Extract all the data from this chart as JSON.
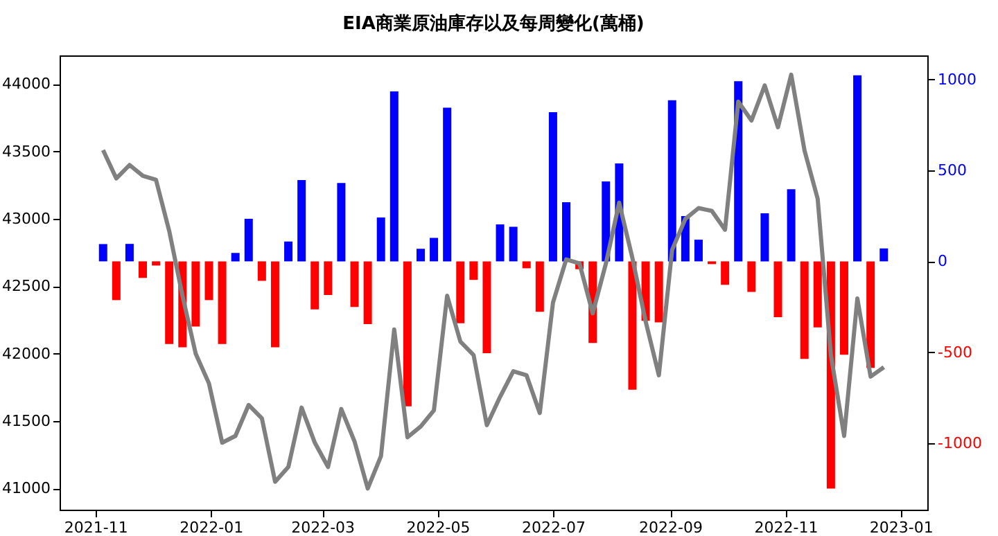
{
  "chart_data": {
    "type": "bar",
    "title": "EIA商業原油庫存以及每周變化(萬桶)",
    "x": [
      "2021-11-05",
      "2021-11-12",
      "2021-11-19",
      "2021-11-26",
      "2021-12-03",
      "2021-12-10",
      "2021-12-17",
      "2021-12-24",
      "2021-12-31",
      "2022-01-07",
      "2022-01-14",
      "2022-01-21",
      "2022-01-28",
      "2022-02-04",
      "2022-02-11",
      "2022-02-18",
      "2022-02-25",
      "2022-03-04",
      "2022-03-11",
      "2022-03-18",
      "2022-03-25",
      "2022-04-01",
      "2022-04-08",
      "2022-04-15",
      "2022-04-22",
      "2022-04-29",
      "2022-05-06",
      "2022-05-13",
      "2022-05-20",
      "2022-05-27",
      "2022-06-03",
      "2022-06-10",
      "2022-06-17",
      "2022-06-24",
      "2022-07-01",
      "2022-07-08",
      "2022-07-15",
      "2022-07-22",
      "2022-07-29",
      "2022-08-05",
      "2022-08-12",
      "2022-08-19",
      "2022-08-26",
      "2022-09-02",
      "2022-09-09",
      "2022-09-16",
      "2022-09-23",
      "2022-09-30",
      "2022-10-07",
      "2022-10-14",
      "2022-10-21",
      "2022-10-28",
      "2022-11-04",
      "2022-11-11",
      "2022-11-18",
      "2022-11-25",
      "2022-12-02",
      "2022-12-09",
      "2022-12-16",
      "2022-12-23"
    ],
    "series": [
      {
        "axis": "y2",
        "colors": [
          "#0000ff",
          "#ff0000",
          "#0000ff",
          "#ff0000",
          "#ff0000",
          "#ff0000",
          "#ff0000",
          "#ff0000",
          "#ff0000",
          "#ff0000",
          "#0000ff",
          "#0000ff",
          "#ff0000",
          "#ff0000",
          "#0000ff",
          "#0000ff",
          "#ff0000",
          "#ff0000",
          "#0000ff",
          "#ff0000",
          "#ff0000",
          "#0000ff",
          "#0000ff",
          "#ff0000",
          "#0000ff",
          "#0000ff",
          "#0000ff",
          "#ff0000",
          "#ff0000",
          "#ff0000",
          "#0000ff",
          "#0000ff",
          "#ff0000",
          "#ff0000",
          "#0000ff",
          "#0000ff",
          "#ff0000",
          "#ff0000",
          "#0000ff",
          "#0000ff",
          "#ff0000",
          "#ff0000",
          "#ff0000",
          "#0000ff",
          "#0000ff",
          "#0000ff",
          "#ff0000",
          "#ff0000",
          "#0000ff",
          "#ff0000",
          "#0000ff",
          "#ff0000",
          "#0000ff",
          "#ff0000",
          "#ff0000",
          "#ff0000",
          "#ff0000",
          "#0000ff",
          "#ff0000",
          "#0000ff"
        ],
        "values": [
          95,
          -213,
          96,
          -91,
          -23,
          -454,
          -472,
          -358,
          -213,
          -454,
          46,
          234,
          -107,
          -472,
          109,
          447,
          -264,
          -185,
          431,
          -251,
          -345,
          241,
          934,
          -797,
          69,
          129,
          845,
          -340,
          -102,
          -505,
          203,
          190,
          -38,
          -277,
          820,
          325,
          -43,
          -449,
          439,
          538,
          -706,
          -327,
          -335,
          886,
          249,
          119,
          -15,
          -129,
          990,
          -168,
          264,
          -307,
          396,
          -536,
          -363,
          -1249,
          -513,
          1023,
          -586,
          71
        ]
      },
      {
        "type": "line",
        "axis": "y",
        "color": "#808080",
        "values": [
          43510,
          43300,
          43400,
          43320,
          43290,
          42910,
          42430,
          42000,
          41780,
          41340,
          41390,
          41620,
          41520,
          41050,
          41160,
          41600,
          41340,
          41160,
          41590,
          41350,
          41000,
          41240,
          42180,
          41380,
          41460,
          41580,
          42430,
          42090,
          41990,
          41470,
          41680,
          41870,
          41840,
          41560,
          42380,
          42700,
          42670,
          42300,
          42670,
          43120,
          42710,
          42240,
          41840,
          42770,
          43000,
          43080,
          43060,
          42920,
          43870,
          43730,
          43990,
          43680,
          44070,
          43510,
          43150,
          41990,
          41390,
          42410,
          41830,
          41900
        ]
      }
    ],
    "xlim": [
      "2021-10-13",
      "2023-01-15"
    ],
    "xticks": [
      "2021-11",
      "2022-01",
      "2022-03",
      "2022-05",
      "2022-07",
      "2022-09",
      "2022-11",
      "2023-01"
    ],
    "ylim": [
      40843,
      44213
    ],
    "yticks": [
      41000,
      41500,
      42000,
      42500,
      43000,
      43500,
      44000
    ],
    "y2lim": [
      -1365,
      1132
    ],
    "y2ticks": [
      -1000,
      -500,
      0,
      500,
      1000
    ]
  }
}
